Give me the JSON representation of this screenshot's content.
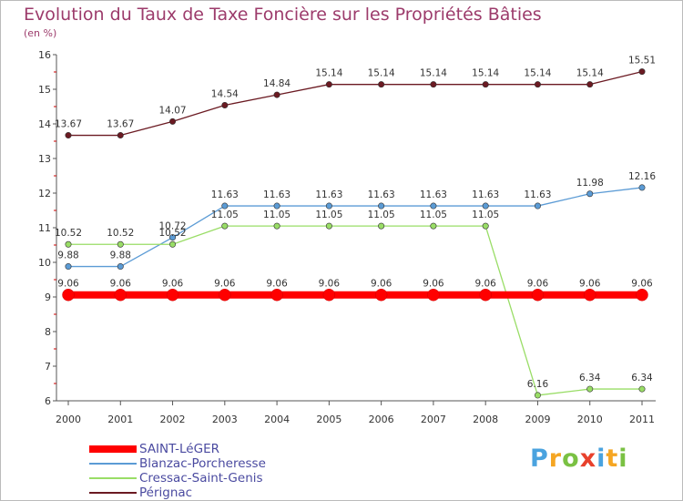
{
  "chart_data": {
    "type": "line",
    "title": "Evolution du Taux de Taxe Foncière sur les Propriétés Bâties",
    "subtitle": "(en %)",
    "xlabel": "",
    "ylabel": "",
    "x": [
      "2000",
      "2001",
      "2002",
      "2003",
      "2004",
      "2005",
      "2006",
      "2007",
      "2008",
      "2009",
      "2010",
      "2011"
    ],
    "ylim": [
      6,
      16
    ],
    "yticks": [
      6,
      7,
      8,
      9,
      10,
      11,
      12,
      13,
      14,
      15,
      16
    ],
    "grid": false,
    "legend_position": "bottom-left",
    "series": [
      {
        "name": "Pérignac",
        "color": "#6b1a22",
        "values": [
          13.67,
          13.67,
          14.07,
          14.54,
          14.84,
          15.14,
          15.14,
          15.14,
          15.14,
          15.14,
          15.14,
          15.51
        ],
        "labels": [
          "13.67",
          "13.67",
          "14.07",
          "14.54",
          "14.84",
          "15.14",
          "15.14",
          "15.14",
          "15.14",
          "15.14",
          "15.14",
          "15.51"
        ]
      },
      {
        "name": "Blanzac-Porcheresse",
        "color": "#5b9bd5",
        "values": [
          9.88,
          9.88,
          10.72,
          11.63,
          11.63,
          11.63,
          11.63,
          11.63,
          11.63,
          11.63,
          11.98,
          12.16
        ],
        "labels": [
          "9.88",
          "9.88",
          "10.72",
          "11.63",
          "11.63",
          "11.63",
          "11.63",
          "11.63",
          "11.63",
          "11.63",
          "11.98",
          "12.16"
        ]
      },
      {
        "name": "Cressac-Saint-Genis",
        "color": "#99dd66",
        "values": [
          10.52,
          10.52,
          10.52,
          11.05,
          11.05,
          11.05,
          11.05,
          11.05,
          11.05,
          6.16,
          6.34,
          6.34
        ],
        "labels": [
          "10.52",
          "10.52",
          "10.52",
          "11.05",
          "11.05",
          "11.05",
          "11.05",
          "11.05",
          "11.05",
          "6.16",
          "6.34",
          "6.34"
        ]
      },
      {
        "name": "SAINT-LéGER",
        "color": "#ff0000",
        "values": [
          9.06,
          9.06,
          9.06,
          9.06,
          9.06,
          9.06,
          9.06,
          9.06,
          9.06,
          9.06,
          9.06,
          9.06
        ],
        "labels": [
          "9.06",
          "9.06",
          "9.06",
          "9.06",
          "9.06",
          "9.06",
          "9.06",
          "9.06",
          "9.06",
          "9.06",
          "9.06",
          "9.06"
        ]
      }
    ],
    "legend": [
      "SAINT-LéGER",
      "Blanzac-Porcheresse",
      "Cressac-Saint-Genis",
      "Pérignac"
    ]
  },
  "branding": {
    "logo_letters": [
      "P",
      "r",
      "o",
      "x",
      "i",
      "t",
      "i"
    ],
    "logo_colors": [
      "#4aa3df",
      "#f5a623",
      "#7ac143",
      "#e8412c",
      "#4aa3df",
      "#f5a623",
      "#7ac143"
    ]
  }
}
